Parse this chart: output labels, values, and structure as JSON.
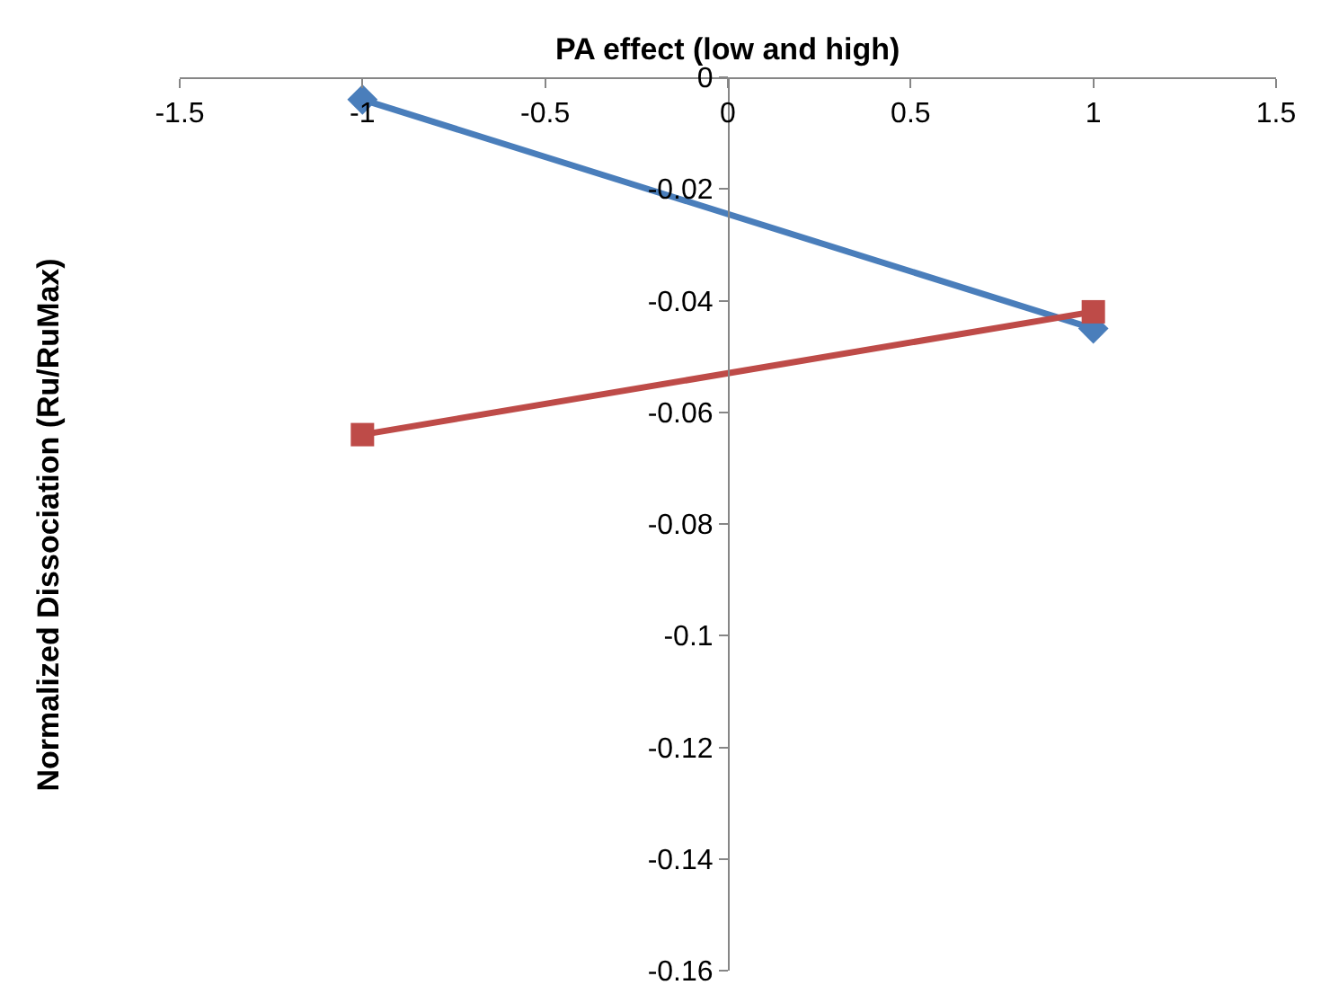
{
  "chart_data": {
    "type": "line",
    "xlabel": "PA effect (low and high)",
    "ylabel": "Normalized Dissociation (Ru/RuMax)",
    "x": [
      -1,
      1
    ],
    "series": [
      {
        "color": "#4a7ebb",
        "marker": "diamond",
        "values": [
          -0.004,
          -0.045
        ]
      },
      {
        "color": "#be4b48",
        "marker": "square",
        "values": [
          -0.064,
          -0.042
        ]
      }
    ],
    "xlim": [
      -1.5,
      1.5
    ],
    "xticks": [
      -1.5,
      -1,
      -0.5,
      0,
      0.5,
      1,
      1.5
    ],
    "ylim": [
      -0.16,
      0
    ],
    "yticks": [
      -0.16,
      -0.14,
      -0.12,
      -0.1,
      -0.08,
      -0.06,
      -0.04,
      -0.02,
      0
    ],
    "grid": false,
    "line_style": "solid"
  }
}
